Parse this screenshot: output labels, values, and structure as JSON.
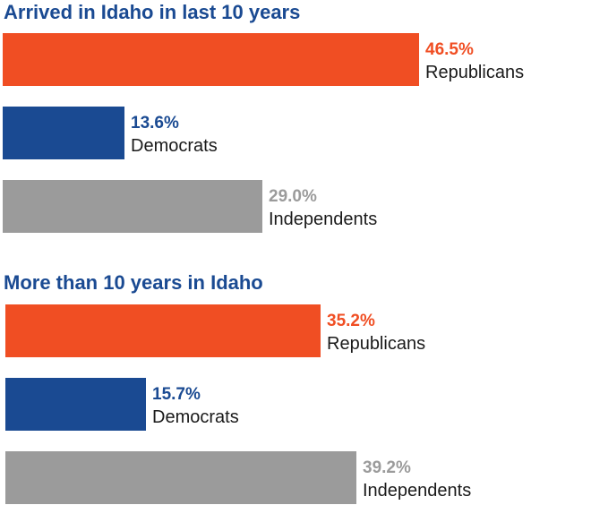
{
  "chart_data": [
    {
      "type": "bar",
      "orientation": "horizontal",
      "title": "Arrived in Idaho in last 10 years",
      "categories": [
        "Republicans",
        "Democrats",
        "Independents"
      ],
      "values": [
        46.5,
        13.6,
        29.0
      ],
      "value_labels": [
        "46.5%",
        "13.6%",
        "29.0%"
      ],
      "colors": [
        "#f04e23",
        "#1a4a92",
        "#9b9b9b"
      ],
      "xlim": [
        0,
        50
      ],
      "grid": false,
      "legend": "none"
    },
    {
      "type": "bar",
      "orientation": "horizontal",
      "title": "More than 10 years in Idaho",
      "categories": [
        "Republicans",
        "Democrats",
        "Independents"
      ],
      "values": [
        35.2,
        15.7,
        39.2
      ],
      "value_labels": [
        "35.2%",
        "15.7%",
        "39.2%"
      ],
      "colors": [
        "#f04e23",
        "#1a4a92",
        "#9b9b9b"
      ],
      "xlim": [
        0,
        50
      ],
      "grid": false,
      "legend": "none"
    }
  ]
}
